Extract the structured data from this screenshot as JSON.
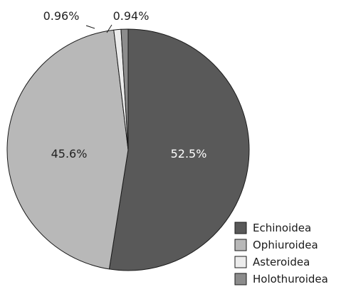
{
  "chart_data": {
    "type": "pie",
    "start_angle_deg": 0,
    "direction": "clockwise",
    "slices": [
      {
        "name": "Echinoidea",
        "value": 52.5,
        "label": "52.5%",
        "color": "#595959",
        "label_color": "#ffffff"
      },
      {
        "name": "Ophiuroidea",
        "value": 45.6,
        "label": "45.6%",
        "color": "#b8b8b8",
        "label_color": "#222222"
      },
      {
        "name": "Asteroidea",
        "value": 0.96,
        "label": "0.96%",
        "color": "#ececec",
        "label_color": "#222222"
      },
      {
        "name": "Holothuroidea",
        "value": 0.94,
        "label": "0.94%",
        "color": "#8c8c8c",
        "label_color": "#222222"
      }
    ],
    "legend_placement": "bottom-right",
    "edge_color": "#1a1a1a"
  }
}
